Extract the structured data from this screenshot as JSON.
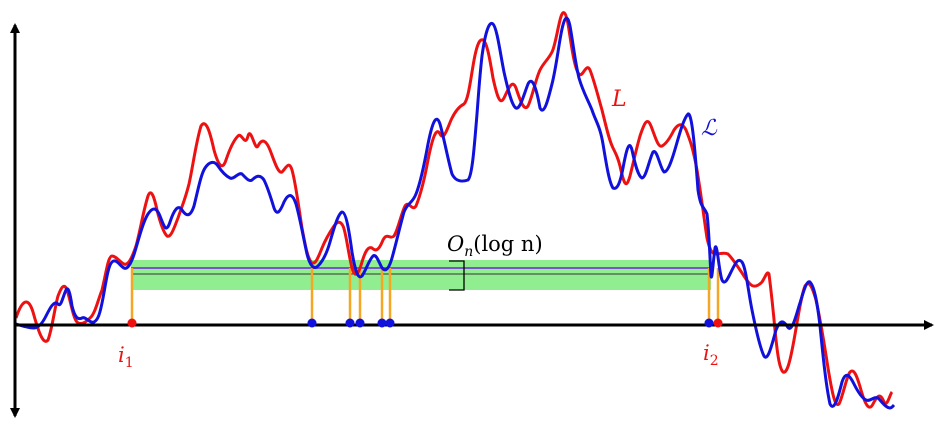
{
  "labels": {
    "L": "L",
    "script_L": "ℒ",
    "i1_base": "i",
    "i1_sub": "1",
    "i2_base": "i",
    "i2_sub": "2",
    "bigo_O": "O",
    "bigo_sub": "n",
    "bigo_arg": "(log n)"
  },
  "colors": {
    "red": "#ee1111",
    "blue": "#1111dd",
    "orange": "#f5a623",
    "green_band": "#90ee90",
    "purple": "#7b55c8",
    "axis": "#000000"
  }
}
